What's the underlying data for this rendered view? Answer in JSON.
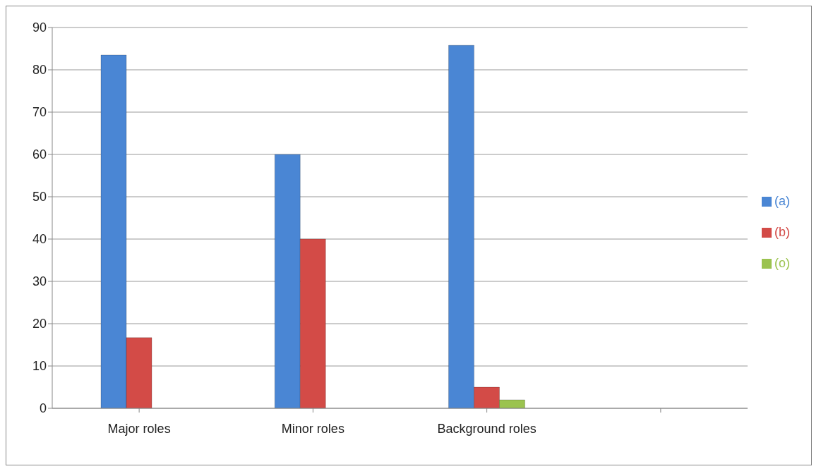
{
  "chart_data": {
    "type": "bar",
    "categories": [
      "Major roles",
      "Minor roles",
      "Background roles",
      null
    ],
    "series": [
      {
        "name": "(a)",
        "color": "#4a86d4",
        "values": [
          83.5,
          60,
          85.8,
          null
        ]
      },
      {
        "name": "(b)",
        "color": "#d34b47",
        "values": [
          16.7,
          40,
          5,
          null
        ]
      },
      {
        "name": "(o)",
        "color": "#9bc34f",
        "values": [
          null,
          null,
          2,
          null
        ]
      }
    ],
    "ylim": [
      0,
      90
    ],
    "yticks": [
      0,
      10,
      20,
      30,
      40,
      50,
      60,
      70,
      80,
      90
    ],
    "grid": "y",
    "legend": "right"
  }
}
